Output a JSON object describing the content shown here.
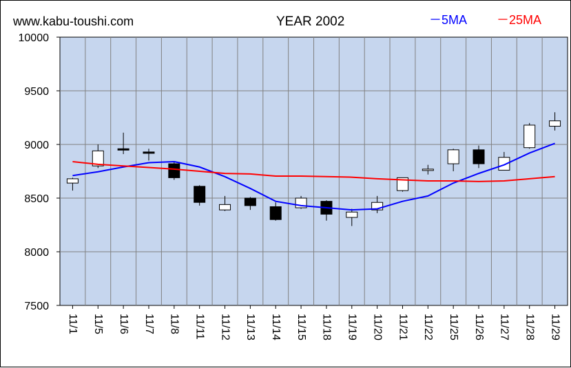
{
  "header": {
    "site": "www.kabu-toushi.com",
    "title": "YEAR 2002",
    "legend_5ma": "－5MA",
    "legend_25ma": "－25MA"
  },
  "colors": {
    "plot_bg": "#c6d6ee",
    "grid": "#808080",
    "ma5": "#0000ff",
    "ma25": "#ff0000",
    "up_candle": "#ffffff",
    "down_candle": "#000000"
  },
  "chart_data": {
    "type": "candlestick",
    "title": "YEAR 2002",
    "xlabel": "",
    "ylabel": "",
    "ylim": [
      7500,
      10000
    ],
    "yticks": [
      "10000",
      "9500",
      "9000",
      "8500",
      "8000",
      "7500"
    ],
    "categories": [
      "11/1",
      "11/5",
      "11/6",
      "11/7",
      "11/8",
      "11/11",
      "11/12",
      "11/13",
      "11/14",
      "11/15",
      "11/18",
      "11/19",
      "11/20",
      "11/21",
      "11/22",
      "11/25",
      "11/26",
      "11/27",
      "11/28",
      "11/29"
    ],
    "open": [
      8640,
      8800,
      8960,
      8930,
      8820,
      8610,
      8390,
      8500,
      8420,
      8410,
      8470,
      8320,
      8390,
      8570,
      8760,
      8820,
      8950,
      8760,
      8970,
      9170
    ],
    "high": [
      8690,
      9000,
      9110,
      8960,
      8840,
      8620,
      8520,
      8510,
      8460,
      8520,
      8480,
      8400,
      8520,
      8680,
      8810,
      8960,
      8990,
      8930,
      9200,
      9300
    ],
    "low": [
      8570,
      8780,
      8910,
      8850,
      8670,
      8430,
      8380,
      8390,
      8290,
      8400,
      8290,
      8240,
      8360,
      8560,
      8720,
      8750,
      8780,
      8760,
      8960,
      9130
    ],
    "close": [
      8680,
      8940,
      8950,
      8920,
      8690,
      8460,
      8440,
      8430,
      8300,
      8500,
      8350,
      8370,
      8460,
      8690,
      8770,
      8950,
      8820,
      8880,
      9180,
      9220
    ],
    "series": [
      {
        "name": "5MA",
        "values": [
          8710,
          8745,
          8790,
          8830,
          8840,
          8790,
          8700,
          8590,
          8470,
          8430,
          8410,
          8390,
          8400,
          8470,
          8520,
          8640,
          8730,
          8810,
          8920,
          9010
        ]
      },
      {
        "name": "25MA",
        "values": [
          8840,
          8815,
          8800,
          8785,
          8770,
          8750,
          8730,
          8725,
          8705,
          8705,
          8700,
          8695,
          8680,
          8670,
          8660,
          8660,
          8655,
          8660,
          8680,
          8700
        ]
      }
    ]
  }
}
